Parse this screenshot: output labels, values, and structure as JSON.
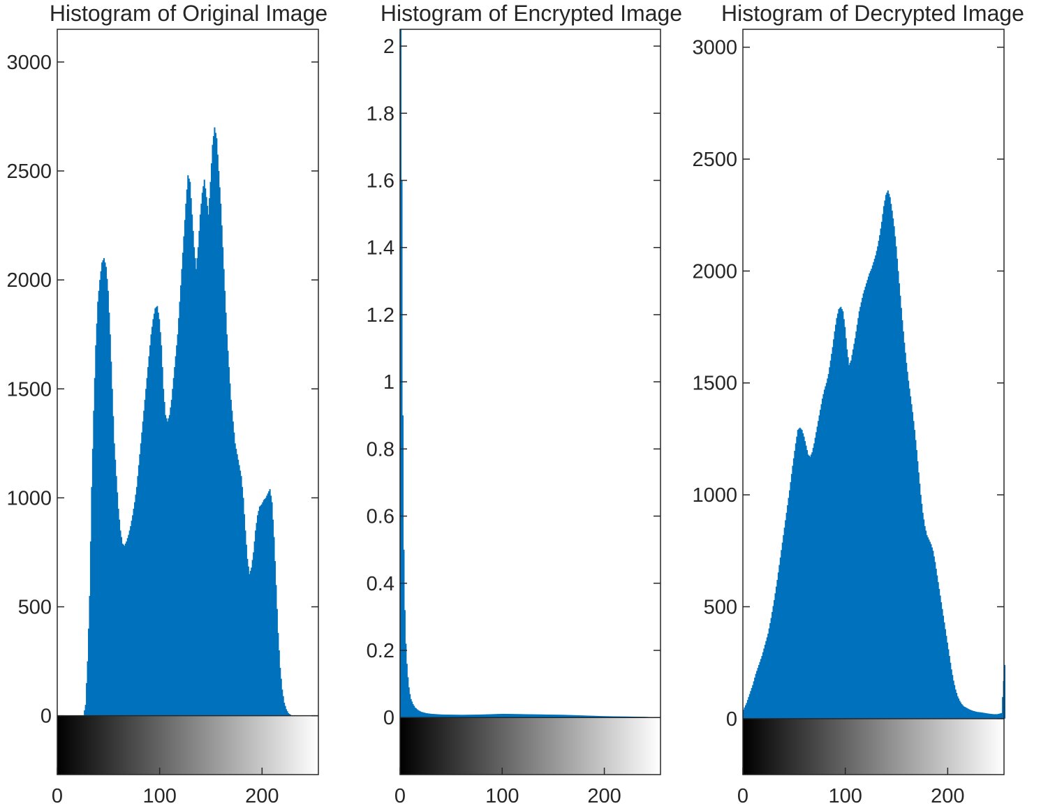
{
  "figure": {
    "background": "#ffffff",
    "bar_color": "#0072BD",
    "axis_color": "#262626"
  },
  "chart_data": [
    {
      "type": "bar",
      "title": "Histogram of Original Image",
      "xlabel": "",
      "ylabel": "",
      "xlim": [
        0,
        255
      ],
      "ylim": [
        -270,
        3150
      ],
      "xticks": [
        0,
        100,
        200
      ],
      "yticks": [
        0,
        500,
        1000,
        1500,
        2000,
        2500,
        3000
      ],
      "ytick_labels": [
        "0",
        "500",
        "1000",
        "1500",
        "2000",
        "2500",
        "3000"
      ],
      "colorbar": "gray",
      "grid": false,
      "bins": [
        [
          0,
          0
        ],
        [
          22,
          0
        ],
        [
          25,
          0
        ],
        [
          27,
          50
        ],
        [
          29,
          250
        ],
        [
          31,
          550
        ],
        [
          33,
          1050
        ],
        [
          35,
          1400
        ],
        [
          37,
          1700
        ],
        [
          39,
          1900
        ],
        [
          41,
          2000
        ],
        [
          43,
          2080
        ],
        [
          45,
          2100
        ],
        [
          47,
          2060
        ],
        [
          49,
          1950
        ],
        [
          51,
          1750
        ],
        [
          53,
          1500
        ],
        [
          55,
          1250
        ],
        [
          57,
          1100
        ],
        [
          59,
          950
        ],
        [
          61,
          850
        ],
        [
          63,
          790
        ],
        [
          65,
          780
        ],
        [
          67,
          800
        ],
        [
          69,
          830
        ],
        [
          71,
          870
        ],
        [
          73,
          920
        ],
        [
          75,
          980
        ],
        [
          77,
          1050
        ],
        [
          79,
          1150
        ],
        [
          81,
          1250
        ],
        [
          83,
          1350
        ],
        [
          85,
          1450
        ],
        [
          87,
          1550
        ],
        [
          89,
          1650
        ],
        [
          91,
          1750
        ],
        [
          93,
          1820
        ],
        [
          95,
          1870
        ],
        [
          97,
          1880
        ],
        [
          99,
          1820
        ],
        [
          101,
          1700
        ],
        [
          103,
          1500
        ],
        [
          105,
          1380
        ],
        [
          107,
          1350
        ],
        [
          109,
          1380
        ],
        [
          111,
          1450
        ],
        [
          113,
          1550
        ],
        [
          115,
          1650
        ],
        [
          117,
          1750
        ],
        [
          119,
          1900
        ],
        [
          121,
          2050
        ],
        [
          123,
          2200
        ],
        [
          125,
          2350
        ],
        [
          127,
          2480
        ],
        [
          129,
          2450
        ],
        [
          131,
          2300
        ],
        [
          133,
          2150
        ],
        [
          135,
          2050
        ],
        [
          137,
          2150
        ],
        [
          139,
          2300
        ],
        [
          141,
          2400
        ],
        [
          143,
          2460
        ],
        [
          145,
          2380
        ],
        [
          147,
          2300
        ],
        [
          149,
          2450
        ],
        [
          151,
          2620
        ],
        [
          153,
          2700
        ],
        [
          155,
          2650
        ],
        [
          157,
          2500
        ],
        [
          159,
          2350
        ],
        [
          161,
          2150
        ],
        [
          163,
          1950
        ],
        [
          165,
          1750
        ],
        [
          167,
          1600
        ],
        [
          169,
          1450
        ],
        [
          171,
          1350
        ],
        [
          173,
          1250
        ],
        [
          175,
          1200
        ],
        [
          177,
          1150
        ],
        [
          179,
          1100
        ],
        [
          181,
          1000
        ],
        [
          183,
          850
        ],
        [
          185,
          720
        ],
        [
          187,
          650
        ],
        [
          189,
          680
        ],
        [
          191,
          750
        ],
        [
          193,
          850
        ],
        [
          195,
          920
        ],
        [
          197,
          960
        ],
        [
          199,
          970
        ],
        [
          201,
          990
        ],
        [
          203,
          1000
        ],
        [
          205,
          1020
        ],
        [
          207,
          1040
        ],
        [
          209,
          980
        ],
        [
          211,
          820
        ],
        [
          213,
          600
        ],
        [
          215,
          380
        ],
        [
          217,
          220
        ],
        [
          219,
          120
        ],
        [
          221,
          60
        ],
        [
          223,
          30
        ],
        [
          225,
          12
        ],
        [
          227,
          5
        ],
        [
          229,
          0
        ],
        [
          255,
          0
        ]
      ]
    },
    {
      "type": "bar",
      "title": "Histogram of Encrypted Image",
      "xlabel": "",
      "ylabel": "",
      "xlim": [
        0,
        255
      ],
      "ylim": [
        -0.17,
        2.05
      ],
      "xticks": [
        0,
        100,
        200
      ],
      "yticks": [
        0,
        0.2,
        0.4,
        0.6,
        0.8,
        1,
        1.2,
        1.4,
        1.6,
        1.8,
        2
      ],
      "ytick_labels": [
        "0",
        "0.2",
        "0.4",
        "0.6",
        "0.8",
        "1",
        "1.2",
        "1.4",
        "1.6",
        "1.8",
        "2"
      ],
      "colorbar": "gray",
      "grid": false,
      "bins": [
        [
          0,
          2.05
        ],
        [
          1,
          1.6
        ],
        [
          2,
          0.9
        ],
        [
          3,
          0.5
        ],
        [
          4,
          0.32
        ],
        [
          5,
          0.22
        ],
        [
          6,
          0.16
        ],
        [
          7,
          0.12
        ],
        [
          8,
          0.09
        ],
        [
          9,
          0.07
        ],
        [
          10,
          0.055
        ],
        [
          12,
          0.04
        ],
        [
          14,
          0.03
        ],
        [
          17,
          0.022
        ],
        [
          20,
          0.017
        ],
        [
          25,
          0.013
        ],
        [
          30,
          0.011
        ],
        [
          40,
          0.009
        ],
        [
          60,
          0.008
        ],
        [
          80,
          0.009
        ],
        [
          100,
          0.011
        ],
        [
          120,
          0.01
        ],
        [
          140,
          0.009
        ],
        [
          160,
          0.008
        ],
        [
          180,
          0.006
        ],
        [
          200,
          0.004
        ],
        [
          220,
          0.003
        ],
        [
          240,
          0.002
        ],
        [
          255,
          0
        ]
      ]
    },
    {
      "type": "bar",
      "title": "Histogram of Decrypted Image",
      "xlabel": "",
      "ylabel": "",
      "xlim": [
        0,
        255
      ],
      "ylim": [
        -250,
        3080
      ],
      "xticks": [
        0,
        100,
        200
      ],
      "yticks": [
        0,
        500,
        1000,
        1500,
        2000,
        2500,
        3000
      ],
      "ytick_labels": [
        "0",
        "500",
        "1000",
        "1500",
        "2000",
        "2500",
        "3000"
      ],
      "colorbar": "gray",
      "grid": false,
      "bins": [
        [
          0,
          40
        ],
        [
          3,
          70
        ],
        [
          6,
          110
        ],
        [
          9,
          150
        ],
        [
          12,
          200
        ],
        [
          15,
          240
        ],
        [
          18,
          280
        ],
        [
          21,
          330
        ],
        [
          24,
          380
        ],
        [
          27,
          450
        ],
        [
          30,
          530
        ],
        [
          33,
          620
        ],
        [
          36,
          720
        ],
        [
          39,
          820
        ],
        [
          42,
          920
        ],
        [
          45,
          1020
        ],
        [
          48,
          1130
        ],
        [
          51,
          1230
        ],
        [
          53,
          1290
        ],
        [
          55,
          1300
        ],
        [
          57,
          1290
        ],
        [
          59,
          1260
        ],
        [
          61,
          1220
        ],
        [
          63,
          1180
        ],
        [
          65,
          1170
        ],
        [
          67,
          1190
        ],
        [
          69,
          1230
        ],
        [
          71,
          1280
        ],
        [
          73,
          1330
        ],
        [
          75,
          1380
        ],
        [
          77,
          1430
        ],
        [
          79,
          1470
        ],
        [
          81,
          1500
        ],
        [
          83,
          1540
        ],
        [
          85,
          1600
        ],
        [
          87,
          1660
        ],
        [
          89,
          1730
        ],
        [
          91,
          1790
        ],
        [
          93,
          1830
        ],
        [
          95,
          1840
        ],
        [
          97,
          1820
        ],
        [
          99,
          1750
        ],
        [
          101,
          1650
        ],
        [
          103,
          1580
        ],
        [
          105,
          1600
        ],
        [
          107,
          1650
        ],
        [
          109,
          1700
        ],
        [
          111,
          1760
        ],
        [
          113,
          1820
        ],
        [
          115,
          1860
        ],
        [
          117,
          1900
        ],
        [
          119,
          1930
        ],
        [
          121,
          1960
        ],
        [
          123,
          1990
        ],
        [
          125,
          2010
        ],
        [
          127,
          2040
        ],
        [
          129,
          2070
        ],
        [
          131,
          2110
        ],
        [
          133,
          2160
        ],
        [
          135,
          2220
        ],
        [
          137,
          2290
        ],
        [
          139,
          2340
        ],
        [
          141,
          2360
        ],
        [
          143,
          2330
        ],
        [
          145,
          2270
        ],
        [
          147,
          2200
        ],
        [
          149,
          2110
        ],
        [
          151,
          2000
        ],
        [
          153,
          1890
        ],
        [
          155,
          1780
        ],
        [
          157,
          1680
        ],
        [
          159,
          1590
        ],
        [
          161,
          1510
        ],
        [
          163,
          1440
        ],
        [
          165,
          1370
        ],
        [
          167,
          1290
        ],
        [
          169,
          1200
        ],
        [
          171,
          1100
        ],
        [
          173,
          1000
        ],
        [
          175,
          920
        ],
        [
          177,
          860
        ],
        [
          179,
          820
        ],
        [
          181,
          800
        ],
        [
          183,
          780
        ],
        [
          185,
          750
        ],
        [
          187,
          700
        ],
        [
          189,
          640
        ],
        [
          191,
          580
        ],
        [
          193,
          520
        ],
        [
          195,
          460
        ],
        [
          197,
          400
        ],
        [
          199,
          340
        ],
        [
          201,
          280
        ],
        [
          203,
          220
        ],
        [
          205,
          170
        ],
        [
          207,
          130
        ],
        [
          209,
          100
        ],
        [
          211,
          80
        ],
        [
          213,
          65
        ],
        [
          215,
          55
        ],
        [
          217,
          50
        ],
        [
          219,
          45
        ],
        [
          221,
          40
        ],
        [
          224,
          35
        ],
        [
          228,
          30
        ],
        [
          232,
          28
        ],
        [
          236,
          25
        ],
        [
          240,
          22
        ],
        [
          244,
          20
        ],
        [
          248,
          20
        ],
        [
          252,
          25
        ],
        [
          255,
          240
        ]
      ]
    }
  ]
}
